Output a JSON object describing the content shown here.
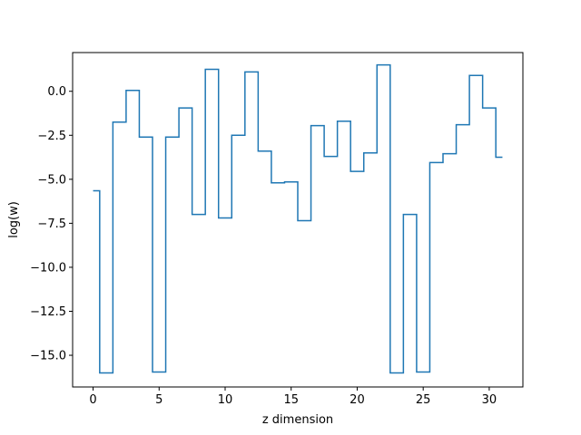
{
  "chart_data": {
    "type": "line",
    "drawstyle": "steps-mid",
    "title": "",
    "xlabel": "z dimension",
    "ylabel": "log(w)",
    "xlim": [
      -1.55,
      32.55
    ],
    "ylim": [
      -16.8,
      2.2
    ],
    "grid": false,
    "line_color": "#1f77b4",
    "x_ticks": [
      0,
      5,
      10,
      15,
      20,
      25,
      30
    ],
    "x_tick_labels": [
      "0",
      "5",
      "10",
      "15",
      "20",
      "25",
      "30"
    ],
    "y_ticks": [
      0.0,
      -2.5,
      -5.0,
      -7.5,
      -10.0,
      -12.5,
      -15.0
    ],
    "y_tick_labels": [
      "0.0",
      "−2.5",
      "−5.0",
      "−7.5",
      "−10.0",
      "−12.5",
      "−15.0"
    ],
    "series": [
      {
        "x": [
          0,
          1,
          2,
          3,
          4,
          5,
          6,
          7,
          8,
          9,
          10,
          11,
          12,
          13,
          14,
          15,
          16,
          17,
          18,
          19,
          20,
          21,
          22,
          23,
          24,
          25,
          26,
          27,
          28,
          29,
          30,
          31
        ],
        "values": [
          -5.65,
          -16.0,
          -1.75,
          0.05,
          -2.6,
          -15.95,
          -2.6,
          -0.95,
          -7.0,
          1.25,
          -7.2,
          -2.5,
          1.1,
          -3.4,
          -5.2,
          -5.15,
          -7.35,
          -1.95,
          -3.7,
          -1.7,
          -4.55,
          -3.5,
          1.5,
          -16.0,
          -7.0,
          -15.95,
          -4.05,
          -3.55,
          -1.9,
          0.9,
          -0.95,
          -3.75
        ]
      }
    ]
  }
}
